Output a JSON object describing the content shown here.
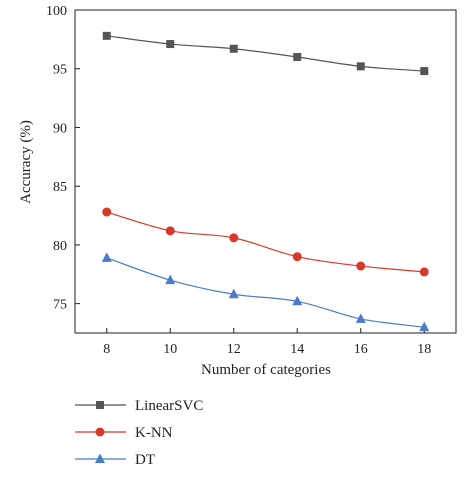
{
  "chart_data": {
    "type": "line",
    "xlabel": "Number of categories",
    "ylabel": "Accuracy (%)",
    "x": [
      8,
      10,
      12,
      14,
      16,
      18
    ],
    "xlim": [
      7,
      19
    ],
    "ylim": [
      72.5,
      100
    ],
    "yticks": [
      75,
      80,
      85,
      90,
      95,
      100
    ],
    "grid": false,
    "legend": "bottom-left",
    "series": [
      {
        "name": "LinearSVC",
        "values": [
          97.8,
          97.1,
          96.7,
          96.0,
          95.2,
          94.8
        ],
        "color": "#555555",
        "marker": "square"
      },
      {
        "name": "K-NN",
        "values": [
          82.8,
          81.2,
          80.6,
          79.0,
          78.2,
          77.7
        ],
        "color": "#d63a2a",
        "marker": "circle"
      },
      {
        "name": "DT",
        "values": [
          78.9,
          77.0,
          75.8,
          75.2,
          73.7,
          73.0
        ],
        "color": "#4a7cc7",
        "marker": "triangle"
      }
    ]
  }
}
